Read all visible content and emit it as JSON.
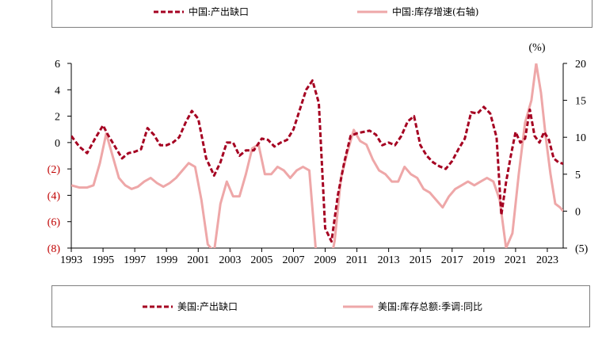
{
  "legend_top": {
    "items": [
      {
        "label": "中国:产出缺口",
        "color": "#a50021",
        "style": "dashed"
      },
      {
        "label": "中国:库存增速(右轴)",
        "color": "#eea7a8",
        "style": "solid"
      }
    ]
  },
  "legend_bottom": {
    "items": [
      {
        "label": "美国:产出缺口",
        "color": "#a50021",
        "style": "dashed"
      },
      {
        "label": "美国:库存总额:季调:同比",
        "color": "#eea7a8",
        "style": "solid"
      }
    ]
  },
  "chart_data": {
    "type": "line",
    "x_tick_labels": [
      "1993",
      "1995",
      "1997",
      "1999",
      "2001",
      "2003",
      "2005",
      "2007",
      "2009",
      "2011",
      "2013",
      "2015",
      "2017",
      "2019",
      "2021",
      "2023"
    ],
    "y_left_tick_labels": [
      "6",
      "4",
      "2",
      "0",
      "(2)",
      "(4)",
      "(6)",
      "(8)"
    ],
    "y_right_tick_labels": [
      "20",
      "15",
      "10",
      "5",
      "0",
      "(5)"
    ],
    "y_right_unit": "(%)",
    "xlim": [
      1993,
      2024
    ],
    "ylim_left": [
      -8,
      6
    ],
    "ylim_right": [
      -5,
      20
    ],
    "colors": {
      "left_axis_negative": "#c00000",
      "dashed_series": "#a50021",
      "solid_series": "#eea7a8"
    },
    "series": [
      {
        "axis": "left",
        "style": "dashed",
        "x": [
          1993,
          1993.5,
          1994,
          1994.5,
          1995,
          1995.3,
          1995.8,
          1996.2,
          1996.6,
          1997,
          1997.4,
          1997.8,
          1998.2,
          1998.6,
          1999,
          1999.4,
          1999.8,
          2000.2,
          2000.6,
          2001,
          2001.5,
          2002,
          2002.4,
          2002.8,
          2003.2,
          2003.6,
          2004,
          2004.5,
          2005,
          2005.4,
          2005.8,
          2006.2,
          2006.6,
          2007,
          2007.4,
          2007.8,
          2008.2,
          2008.6,
          2009,
          2009.4,
          2009.8,
          2010.2,
          2010.6,
          2011,
          2011.4,
          2011.8,
          2012.2,
          2012.6,
          2013,
          2013.4,
          2013.8,
          2014.2,
          2014.6,
          2015,
          2015.4,
          2015.8,
          2016.2,
          2016.6,
          2017,
          2017.4,
          2017.8,
          2018.2,
          2018.6,
          2019,
          2019.4,
          2019.8,
          2020.1,
          2020.4,
          2020.7,
          2021,
          2021.3,
          2021.6,
          2021.9,
          2022.2,
          2022.5,
          2022.8,
          2023.1,
          2023.4,
          2023.7,
          2024
        ],
        "y": [
          0.5,
          -0.3,
          -0.8,
          0.3,
          1.3,
          0.6,
          -0.4,
          -1.2,
          -0.8,
          -0.7,
          -0.5,
          1.1,
          0.6,
          -0.2,
          -0.2,
          0.0,
          0.4,
          1.5,
          2.4,
          1.8,
          -1.2,
          -2.5,
          -1.5,
          0.0,
          0.0,
          -1.0,
          -0.6,
          -0.6,
          0.3,
          0.2,
          -0.3,
          0.0,
          0.2,
          1.0,
          2.5,
          4.0,
          4.7,
          3.0,
          -6.5,
          -7.5,
          -4.0,
          -1.5,
          0.5,
          0.7,
          0.8,
          0.9,
          0.6,
          -0.2,
          0.0,
          -0.2,
          0.5,
          1.6,
          2.0,
          -0.2,
          -1.0,
          -1.5,
          -1.8,
          -2.0,
          -1.4,
          -0.5,
          0.3,
          2.3,
          2.2,
          2.7,
          2.2,
          0.4,
          -5.5,
          -3.0,
          -1.0,
          0.8,
          0.0,
          0.3,
          2.5,
          0.5,
          0.0,
          0.8,
          0.2,
          -1.2,
          -1.5,
          -1.6
        ]
      },
      {
        "axis": "right",
        "style": "solid",
        "x": [
          1993,
          1993.5,
          1994,
          1994.4,
          1994.8,
          1995.2,
          1995.6,
          1996,
          1996.4,
          1996.8,
          1997.2,
          1997.6,
          1998,
          1998.4,
          1998.8,
          1999.2,
          1999.6,
          2000,
          2000.4,
          2000.8,
          2001.2,
          2001.6,
          2002,
          2002.4,
          2002.8,
          2003.2,
          2003.6,
          2004,
          2004.4,
          2004.8,
          2005.2,
          2005.6,
          2006,
          2006.4,
          2006.8,
          2007.2,
          2007.6,
          2008,
          2008.4,
          2008.8,
          2009.2,
          2009.6,
          2010,
          2010.4,
          2010.8,
          2011.2,
          2011.6,
          2012,
          2012.4,
          2012.8,
          2013.2,
          2013.6,
          2014,
          2014.4,
          2014.8,
          2015.2,
          2015.6,
          2016,
          2016.4,
          2016.8,
          2017.2,
          2017.6,
          2018,
          2018.4,
          2018.8,
          2019.2,
          2019.6,
          2020,
          2020.4,
          2020.8,
          2021.2,
          2021.6,
          2022,
          2022.3,
          2022.6,
          2022.9,
          2023.2,
          2023.5,
          2023.8,
          2024
        ],
        "y": [
          3.5,
          3.2,
          3.2,
          3.5,
          6.5,
          10.5,
          7.5,
          4.5,
          3.5,
          3.0,
          3.3,
          4.0,
          4.5,
          3.8,
          3.3,
          3.8,
          4.5,
          5.5,
          6.5,
          6.0,
          1.5,
          -4.5,
          -5.5,
          1.0,
          4.0,
          2.0,
          2.0,
          5.0,
          8.5,
          9.0,
          5.0,
          5.0,
          6.0,
          5.5,
          4.5,
          5.5,
          6.0,
          5.5,
          -5.0,
          -10.0,
          -8.5,
          -4.0,
          4.5,
          8.0,
          11.0,
          9.5,
          9.0,
          7.0,
          5.5,
          5.0,
          4.0,
          4.0,
          6.0,
          5.0,
          4.5,
          3.0,
          2.5,
          1.5,
          0.5,
          2.0,
          3.0,
          3.5,
          4.0,
          3.5,
          4.0,
          4.5,
          4.0,
          1.5,
          -5.0,
          -3.0,
          5.0,
          12.0,
          15.0,
          20.0,
          16.0,
          10.0,
          5.0,
          1.0,
          0.5,
          0.0
        ]
      }
    ]
  }
}
